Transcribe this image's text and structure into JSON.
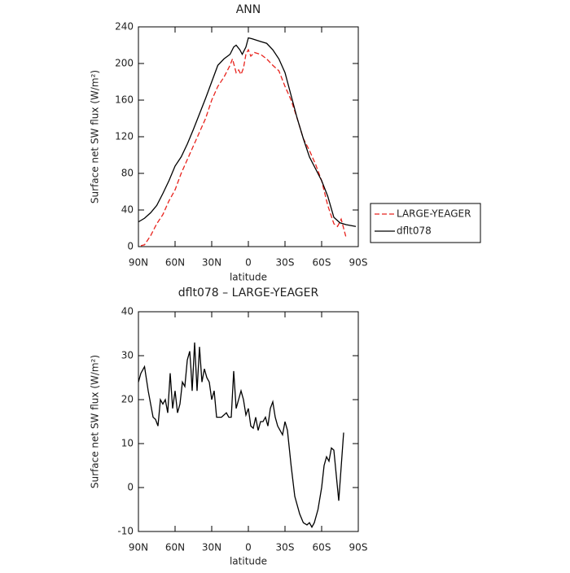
{
  "chart_data": [
    {
      "type": "line",
      "title": "ANN",
      "xlabel": "latitude",
      "ylabel": "Surface net SW flux (W/m²)",
      "xlim": [
        90,
        -90
      ],
      "xticks": [
        {
          "value": 90,
          "label": "90N"
        },
        {
          "value": 60,
          "label": "60N"
        },
        {
          "value": 30,
          "label": "30N"
        },
        0,
        {
          "value": -30,
          "label": "30S"
        },
        {
          "value": -60,
          "label": "60S"
        },
        {
          "value": -90,
          "label": "90S"
        }
      ],
      "ylim": [
        0,
        240
      ],
      "yticks": [
        0,
        40,
        80,
        120,
        160,
        200,
        240
      ],
      "legend": "outside right",
      "series": [
        {
          "name": "LARGE-YEAGER",
          "color": "#e8231d",
          "line_style": "dashed",
          "x": [
            88,
            85,
            80,
            75,
            70,
            65,
            60,
            55,
            50,
            45,
            40,
            35,
            30,
            25,
            20,
            15,
            13,
            10,
            8,
            6,
            4,
            2,
            0,
            -2,
            -5,
            -10,
            -15,
            -20,
            -25,
            -30,
            -35,
            -40,
            -45,
            -50,
            -55,
            -60,
            -65,
            -70,
            -73,
            -76,
            -80
          ],
          "values": [
            1,
            2,
            12,
            25,
            35,
            50,
            62,
            80,
            95,
            110,
            125,
            140,
            160,
            175,
            185,
            198,
            205,
            190,
            193,
            188,
            195,
            210,
            215,
            208,
            212,
            210,
            205,
            198,
            192,
            175,
            160,
            140,
            118,
            105,
            90,
            72,
            45,
            25,
            22,
            30,
            10
          ]
        },
        {
          "name": "dflt078",
          "color": "#000000",
          "line_style": "solid",
          "x": [
            90,
            85,
            80,
            75,
            70,
            65,
            60,
            55,
            50,
            45,
            40,
            35,
            30,
            25,
            20,
            15,
            12,
            10,
            7,
            5,
            2,
            0,
            -3,
            -10,
            -15,
            -20,
            -25,
            -30,
            -35,
            -40,
            -45,
            -50,
            -55,
            -60,
            -65,
            -70,
            -75,
            -80,
            -88
          ],
          "values": [
            27,
            31,
            37,
            45,
            58,
            72,
            88,
            98,
            112,
            128,
            145,
            162,
            180,
            198,
            205,
            210,
            218,
            220,
            215,
            210,
            218,
            228,
            227,
            224,
            222,
            215,
            205,
            190,
            165,
            140,
            118,
            98,
            85,
            72,
            55,
            32,
            26,
            24,
            22
          ]
        }
      ]
    },
    {
      "type": "line",
      "title": "dflt078 – LARGE-YEAGER",
      "xlabel": "latitude",
      "ylabel": "Surface net SW flux (W/m²)",
      "xlim": [
        90,
        -90
      ],
      "xticks": [
        {
          "value": 90,
          "label": "90N"
        },
        {
          "value": 60,
          "label": "60N"
        },
        {
          "value": 30,
          "label": "30N"
        },
        0,
        {
          "value": -30,
          "label": "30S"
        },
        {
          "value": -60,
          "label": "60S"
        },
        {
          "value": -90,
          "label": "90S"
        }
      ],
      "ylim": [
        -10,
        40
      ],
      "yticks": [
        -10,
        0,
        10,
        20,
        30,
        40
      ],
      "color": "#000000",
      "x": [
        90,
        88,
        85,
        82,
        78,
        76,
        74,
        72,
        70,
        68,
        66,
        64,
        62,
        60,
        58,
        56,
        54,
        52,
        50,
        48,
        47,
        46,
        44,
        42,
        40,
        38,
        36,
        34,
        32,
        30,
        28,
        26,
        22,
        18,
        16,
        14,
        12,
        10,
        8,
        6,
        4,
        2,
        0,
        -2,
        -4,
        -6,
        -8,
        -10,
        -12,
        -14,
        -16,
        -18,
        -20,
        -22,
        -24,
        -26,
        -28,
        -30,
        -32,
        -35,
        -38,
        -42,
        -45,
        -48,
        -50,
        -52,
        -54,
        -57,
        -60,
        -62,
        -64,
        -66,
        -68,
        -70,
        -74,
        -78
      ],
      "values": [
        24,
        26,
        27.5,
        22,
        16,
        15.5,
        14,
        20,
        19,
        20,
        17,
        26,
        18,
        22,
        17,
        19,
        24,
        23,
        29,
        31,
        27,
        22,
        33,
        22,
        32,
        24,
        27,
        25,
        24,
        20,
        22,
        16,
        16,
        17,
        16,
        16,
        26.5,
        18,
        20,
        22,
        20,
        16.5,
        18,
        14,
        13.5,
        16,
        13,
        15,
        15,
        16,
        14,
        18,
        19.5,
        16,
        14,
        13,
        12,
        15,
        13,
        5,
        -2,
        -6,
        -8,
        -8.5,
        -8,
        -9,
        -8,
        -5,
        0,
        5,
        7,
        6,
        9,
        8.5,
        -3,
        12.5
      ]
    }
  ]
}
